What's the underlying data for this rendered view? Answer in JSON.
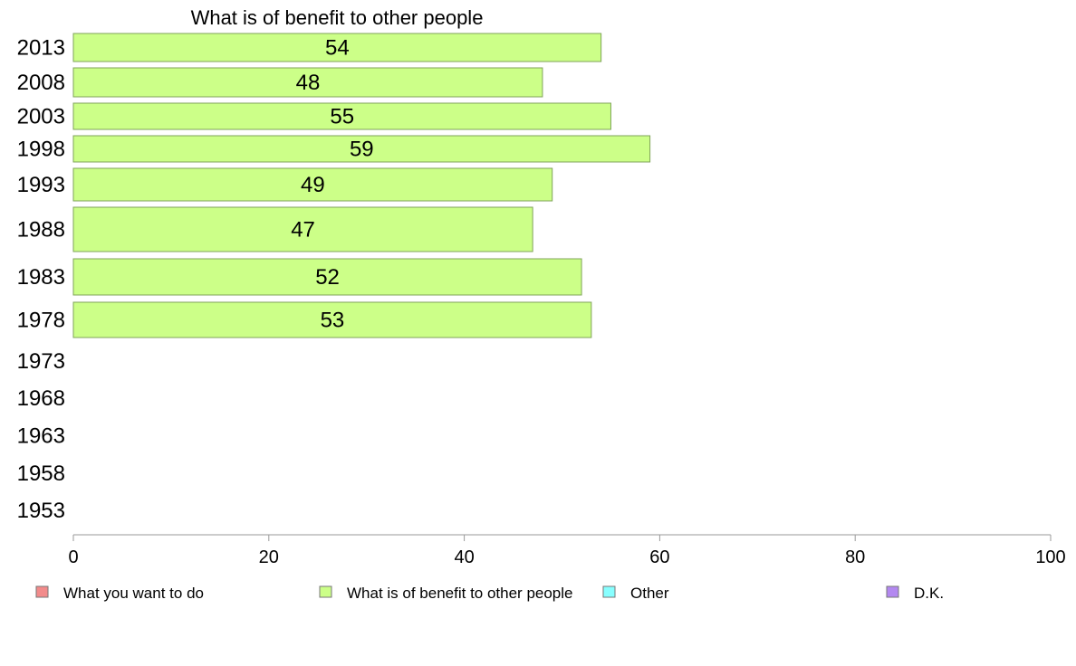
{
  "chart_data": {
    "type": "bar",
    "orientation": "horizontal",
    "title": "What is of benefit to other people",
    "categories": [
      "2013",
      "2008",
      "2003",
      "1998",
      "1993",
      "1988",
      "1983",
      "1978",
      "1973",
      "1968",
      "1963",
      "1958",
      "1953"
    ],
    "series": [
      {
        "name": "What is of benefit to other people",
        "values": [
          54,
          48,
          55,
          59,
          49,
          47,
          52,
          53,
          null,
          null,
          null,
          null,
          null
        ],
        "color": "#ccff88"
      }
    ],
    "xlim": [
      0,
      100
    ],
    "xticks": [
      0,
      20,
      40,
      60,
      80,
      100
    ],
    "grid": false,
    "legend": {
      "placement": "bottom",
      "entries": [
        {
          "label": "What you want to do",
          "color": "#f28b8b"
        },
        {
          "label": "What is of benefit to other people",
          "color": "#ccff88"
        },
        {
          "label": "Other",
          "color": "#88ffff"
        },
        {
          "label": "D.K.",
          "color": "#b388f0"
        }
      ]
    }
  }
}
